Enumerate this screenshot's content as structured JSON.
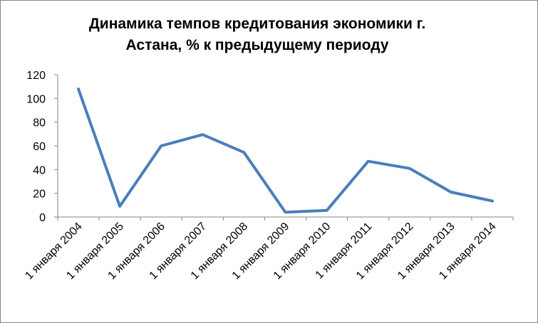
{
  "chart_data": {
    "type": "line",
    "title_lines": [
      "Динамика темпов кредитования экономики г.",
      "Астана, % к предыдущему периоду"
    ],
    "categories": [
      "1 января 2004",
      "1 января 2005",
      "1 января 2006",
      "1 января 2007",
      "1 января 2008",
      "1 января 2009",
      "1 января 2010",
      "1 января 2011",
      "1 января 2012",
      "1 января 2013",
      "1 января 2014"
    ],
    "series": [
      {
        "values": [
          108,
          9,
          60,
          69.5,
          54.5,
          4,
          5.5,
          47,
          41,
          21,
          13.5
        ],
        "color": "#4a7ebb"
      }
    ],
    "yticks": [
      "0",
      "20",
      "40",
      "60",
      "80",
      "100",
      "120"
    ],
    "ylim": [
      0,
      120
    ],
    "grid": false,
    "legend": "none"
  }
}
